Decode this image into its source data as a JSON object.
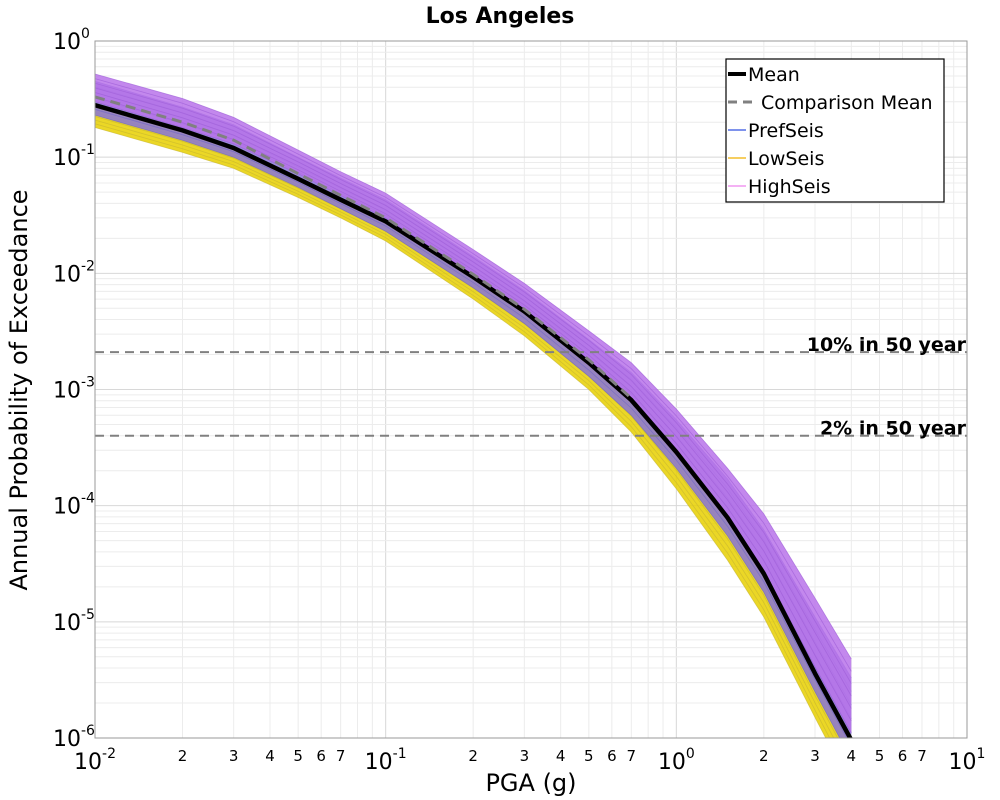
{
  "chart_data": {
    "type": "line",
    "title": "Los Angeles",
    "xlabel": "PGA (g)",
    "ylabel": "Annual Probability of Exceedance",
    "x_scale": "log",
    "y_scale": "log",
    "xlim": [
      0.01,
      10
    ],
    "ylim": [
      1e-06,
      1
    ],
    "grid": true,
    "legend_placement": "top-right",
    "x_tick_labels": [
      {
        "value": 0.01,
        "base": "10",
        "exp": "-2"
      },
      {
        "value": 0.1,
        "base": "10",
        "exp": "-1"
      },
      {
        "value": 1,
        "base": "10",
        "exp": "0"
      },
      {
        "value": 10,
        "base": "10",
        "exp": "1"
      }
    ],
    "x_minor_labels": [
      "2",
      "3",
      "4",
      "5",
      "6",
      "7"
    ],
    "y_tick_labels": [
      {
        "value": 1,
        "base": "10",
        "exp": "0"
      },
      {
        "value": 0.1,
        "base": "10",
        "exp": "-1"
      },
      {
        "value": 0.01,
        "base": "10",
        "exp": "-2"
      },
      {
        "value": 0.001,
        "base": "10",
        "exp": "-3"
      },
      {
        "value": 0.0001,
        "base": "10",
        "exp": "-4"
      },
      {
        "value": 1e-05,
        "base": "10",
        "exp": "-5"
      },
      {
        "value": 1e-06,
        "base": "10",
        "exp": "-6"
      }
    ],
    "x": [
      0.01,
      0.02,
      0.03,
      0.05,
      0.07,
      0.1,
      0.2,
      0.3,
      0.5,
      0.7,
      1.0,
      1.5,
      2.0,
      3.0,
      4.0
    ],
    "series": [
      {
        "name": "Mean",
        "color": "#000000",
        "style": "solid",
        "width": 4.5,
        "values": [
          0.28,
          0.17,
          0.12,
          0.065,
          0.043,
          0.028,
          0.0093,
          0.0047,
          0.0017,
          0.00081,
          0.00029,
          7.9e-05,
          2.6e-05,
          3.6e-06,
          9.6e-07
        ]
      },
      {
        "name": "Comparison Mean",
        "color": "#808080",
        "style": "dashed",
        "width": 3,
        "values": [
          0.33,
          0.2,
          0.14,
          0.072,
          0.047,
          0.03,
          0.0098,
          0.0049,
          0.0018,
          0.00084,
          null,
          null,
          null,
          null,
          null
        ]
      }
    ],
    "bands": [
      {
        "name": "LowSeis",
        "legend_color": "#f0b000",
        "fill": "#e7d000",
        "upper": [
          0.28,
          0.17,
          0.12,
          0.065,
          0.043,
          0.028,
          0.0093,
          0.0047,
          0.0017,
          0.00081,
          0.00029,
          7.9e-05,
          2.6e-05,
          3.6e-06,
          9.6e-07
        ],
        "lower": [
          0.18,
          0.11,
          0.08,
          0.045,
          0.03,
          0.019,
          0.006,
          0.0029,
          0.001,
          0.00043,
          0.00014,
          3.4e-05,
          1.1e-05,
          1.5e-06,
          3.8e-07
        ]
      },
      {
        "name": "PrefSeis",
        "legend_color": "#3050e0",
        "fill": "#8a76d8",
        "upper": [
          0.45,
          0.27,
          0.19,
          0.1,
          0.066,
          0.043,
          0.014,
          0.0071,
          0.0027,
          0.0014,
          0.00055,
          0.00017,
          6.2e-05,
          1.1e-05,
          3.3e-06
        ],
        "lower": [
          0.23,
          0.14,
          0.1,
          0.055,
          0.036,
          0.023,
          0.0075,
          0.0037,
          0.0013,
          0.0006,
          0.00021,
          5.5e-05,
          1.8e-05,
          2.5e-06,
          6.5e-07
        ]
      },
      {
        "name": "HighSeis",
        "legend_color": "#ee82ee",
        "fill": "#b873ea",
        "upper": [
          0.52,
          0.32,
          0.22,
          0.115,
          0.075,
          0.049,
          0.016,
          0.0082,
          0.0032,
          0.0017,
          0.00068,
          0.00021,
          8.5e-05,
          1.6e-05,
          4.8e-06
        ],
        "lower": [
          0.3,
          0.18,
          0.13,
          0.072,
          0.047,
          0.03,
          0.0098,
          0.0049,
          0.0018,
          0.00084,
          0.0003,
          8.2e-05,
          2.8e-05,
          4.1e-06,
          1.1e-06
        ]
      }
    ],
    "reference_lines": [
      {
        "label": "10% in 50 year",
        "y": 0.0021
      },
      {
        "label": "2% in 50 year",
        "y": 0.0004
      }
    ]
  },
  "legend": {
    "entries": [
      {
        "label": "Mean",
        "color": "#000000",
        "style": "solid-thick"
      },
      {
        "label": "Comparison Mean",
        "color": "#808080",
        "style": "dashed"
      },
      {
        "label": "PrefSeis",
        "color": "#3050e0",
        "style": "thin"
      },
      {
        "label": "LowSeis",
        "color": "#f0b000",
        "style": "thin"
      },
      {
        "label": "HighSeis",
        "color": "#ee82ee",
        "style": "thin"
      }
    ]
  }
}
